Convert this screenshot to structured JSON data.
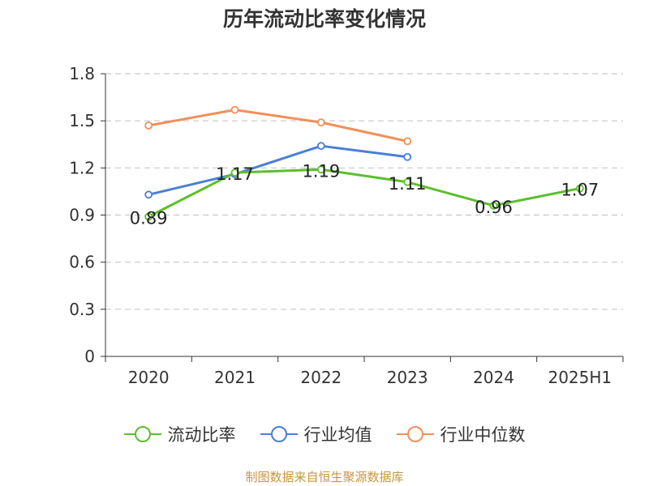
{
  "chart_data": {
    "type": "line",
    "title": "历年流动比率变化情况",
    "categories": [
      "2020",
      "2021",
      "2022",
      "2023",
      "2024",
      "2025H1"
    ],
    "y_ticks": [
      "0",
      "0.3",
      "0.6",
      "0.9",
      "1.2",
      "1.5",
      "1.8"
    ],
    "ylim": [
      0,
      1.8
    ],
    "grid": true,
    "legend_position": "bottom",
    "series": [
      {
        "name": "流动比率",
        "color": "#5cbf2a",
        "values": [
          0.89,
          1.17,
          1.19,
          1.11,
          0.96,
          1.07
        ],
        "data_labels": [
          "0.89",
          "1.17",
          "1.19",
          "1.11",
          "0.96",
          "1.07"
        ]
      },
      {
        "name": "行业均值",
        "color": "#4a7ed8",
        "values": [
          1.03,
          1.16,
          1.34,
          1.27,
          null,
          null
        ]
      },
      {
        "name": "行业中位数",
        "color": "#f28f5a",
        "values": [
          1.47,
          1.57,
          1.49,
          1.37,
          null,
          null
        ]
      }
    ]
  },
  "footer": {
    "source": "制图数据来自恒生聚源数据库"
  }
}
